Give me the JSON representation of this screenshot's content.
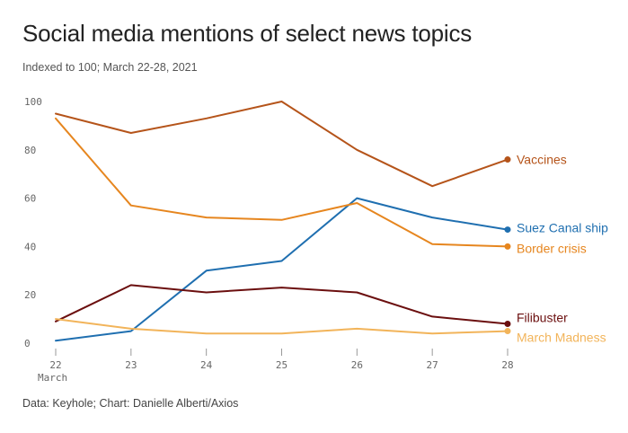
{
  "title": "Social media mentions of select news topics",
  "subtitle": "Indexed to 100; March 22-28, 2021",
  "footer": "Data: Keyhole; Chart: Danielle Alberti/Axios",
  "chart_data": {
    "type": "line",
    "title": "Social media mentions of select news topics",
    "subtitle": "Indexed to 100; March 22-28, 2021",
    "x": [
      22,
      23,
      24,
      25,
      26,
      27,
      28
    ],
    "x_tick_labels": [
      "22",
      "23",
      "24",
      "25",
      "26",
      "27",
      "28"
    ],
    "x_sublabel": "March",
    "xlabel": "",
    "ylabel": "",
    "ylim": [
      0,
      100
    ],
    "y_ticks": [
      0,
      20,
      40,
      60,
      80,
      100
    ],
    "grid": false,
    "legend": "direct labels at line ends",
    "series": [
      {
        "name": "Vaccines",
        "color": "#b5541a",
        "values": [
          95,
          87,
          93,
          100,
          80,
          65,
          76
        ]
      },
      {
        "name": "Suez Canal ship",
        "color": "#1f6fb0",
        "values": [
          1,
          5,
          30,
          34,
          60,
          52,
          47
        ]
      },
      {
        "name": "Border crisis",
        "color": "#e6861f",
        "values": [
          93,
          57,
          52,
          51,
          58,
          41,
          40
        ]
      },
      {
        "name": "Filibuster",
        "color": "#6b0f0f",
        "values": [
          9,
          24,
          21,
          23,
          21,
          11,
          8
        ]
      },
      {
        "name": "March Madness",
        "color": "#f2b45a",
        "values": [
          10,
          6,
          4,
          4,
          6,
          4,
          5
        ]
      }
    ]
  }
}
